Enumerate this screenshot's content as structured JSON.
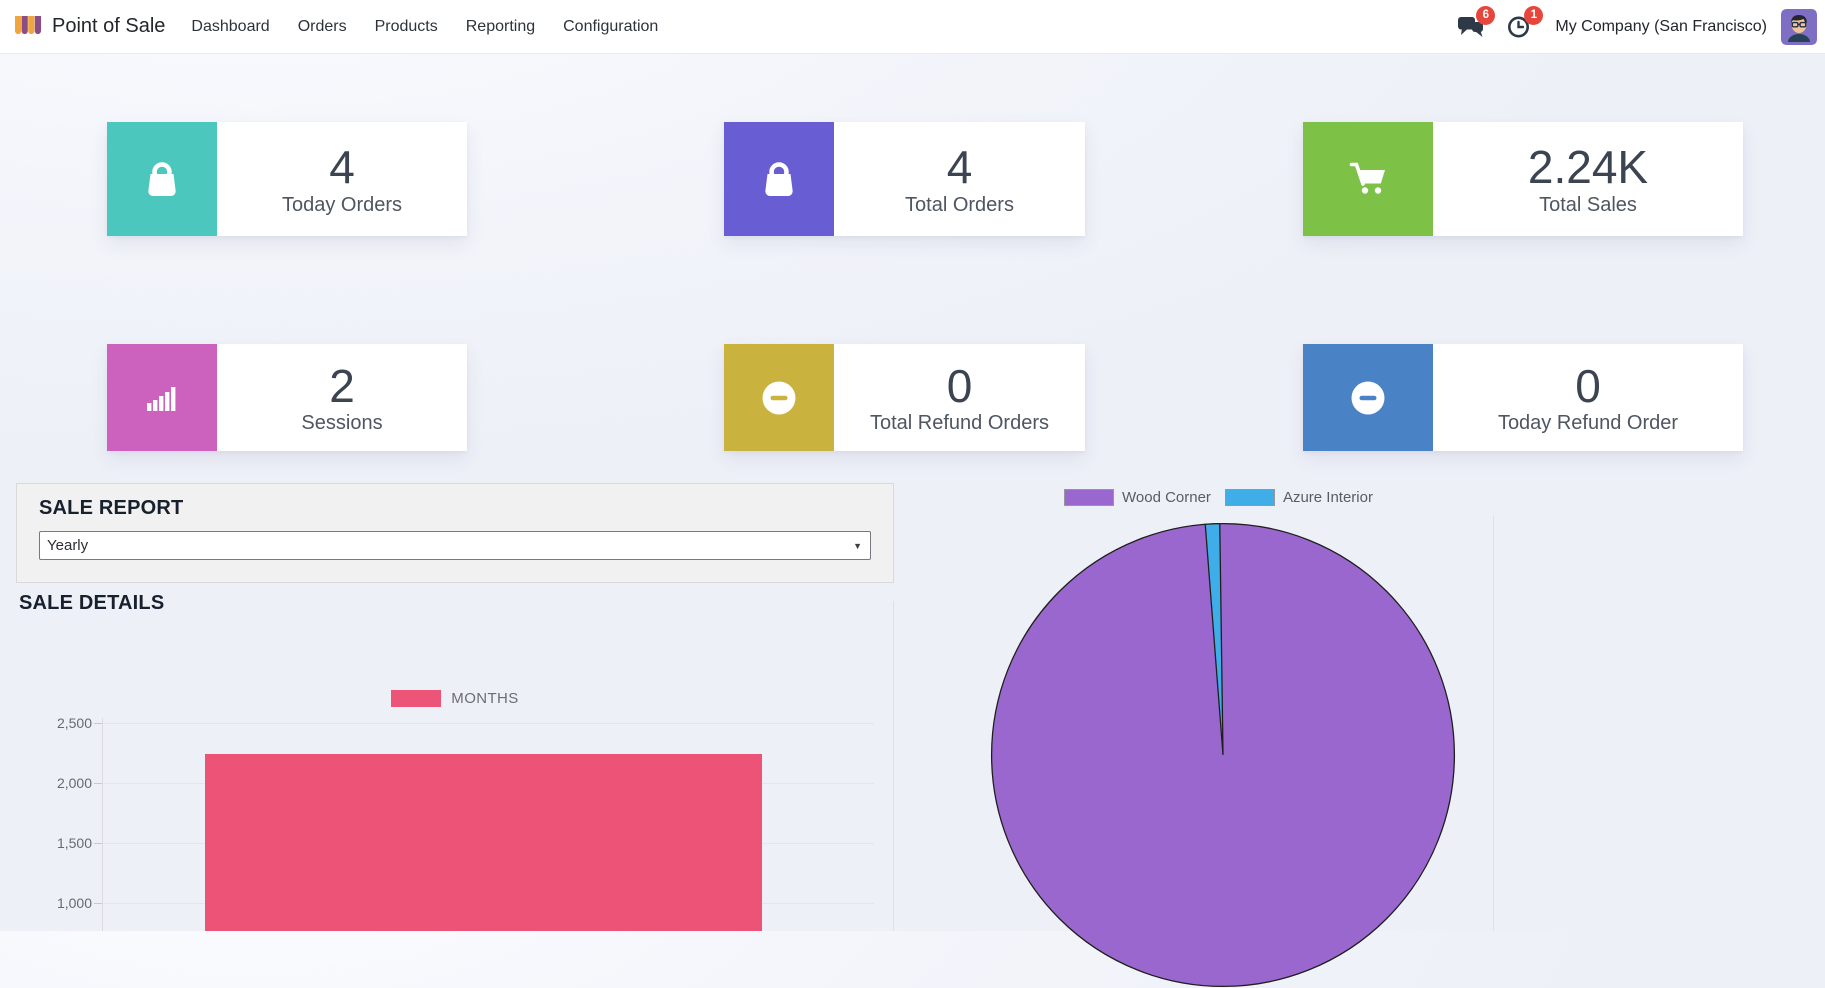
{
  "app": {
    "name": "Point of Sale"
  },
  "nav": {
    "items": [
      {
        "label": "Dashboard"
      },
      {
        "label": "Orders"
      },
      {
        "label": "Products"
      },
      {
        "label": "Reporting"
      },
      {
        "label": "Configuration"
      }
    ]
  },
  "topbar": {
    "messages_badge": "6",
    "activities_badge": "1",
    "company": "My Company (San Francisco)",
    "badge_color": "#e7463c"
  },
  "kpis": [
    {
      "value": "4",
      "label": "Today Orders",
      "color": "#4bc7be",
      "icon": "shopping-bag-icon"
    },
    {
      "value": "4",
      "label": "Total Orders",
      "color": "#695dd3",
      "icon": "shopping-bag-icon"
    },
    {
      "value": "2.24K",
      "label": "Total Sales",
      "color": "#7ec147",
      "icon": "shopping-cart-icon"
    },
    {
      "value": "2",
      "label": "Sessions",
      "color": "#cd62be",
      "icon": "bar-chart-icon"
    },
    {
      "value": "0",
      "label": "Total Refund Orders",
      "color": "#c9b23d",
      "icon": "minus-circle-icon"
    },
    {
      "value": "0",
      "label": "Today Refund Order",
      "color": "#4a83c5",
      "icon": "minus-circle-icon"
    }
  ],
  "sale_report": {
    "title": "SALE REPORT",
    "period_selected": "Yearly"
  },
  "sale_details_title": "SALE DETAILS",
  "chart_data": [
    {
      "type": "bar",
      "section_title": "SALE DETAILS",
      "legend": [
        {
          "label": "MONTHS",
          "color": "#ed5578"
        }
      ],
      "legend_position": "top",
      "categories": [
        ""
      ],
      "values": [
        2238
      ],
      "bar_color": "#ec5376",
      "ylim": [
        0,
        2500
      ],
      "yticks": [
        2500,
        2000,
        1500,
        1000
      ],
      "grid": true,
      "note": "single wide bar, chart cut off at bottom of viewport"
    },
    {
      "type": "pie",
      "legend_position": "top",
      "slices": [
        {
          "label": "Wood Corner",
          "percent": 99.0,
          "color": "#9a67cf"
        },
        {
          "label": "Azure Interior",
          "percent": 1.0,
          "color": "#3fade8"
        }
      ],
      "outline_color": "#1f1f1f"
    }
  ]
}
